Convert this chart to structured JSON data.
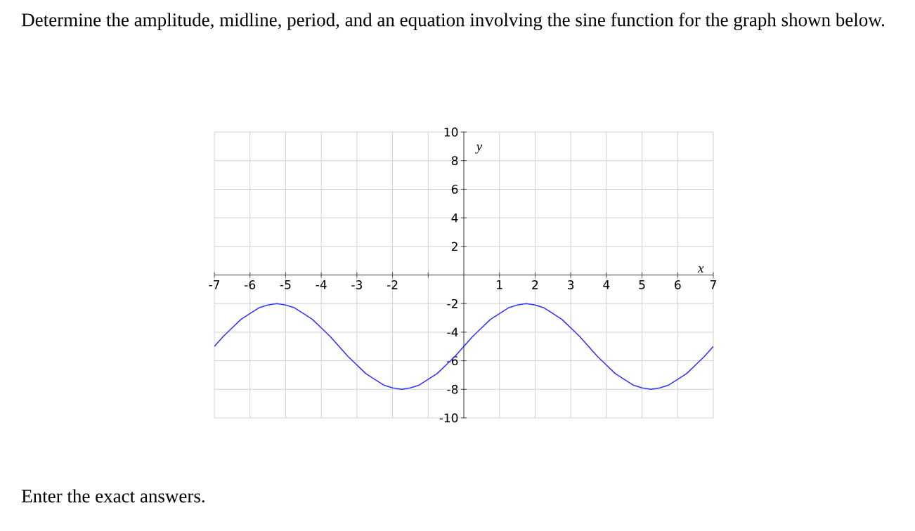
{
  "chart_data": {
    "type": "line",
    "title": "Determine the amplitude, midline, period, and an equation involving the sine function for the graph shown below.",
    "annotations": [
      "Enter the exact answers."
    ],
    "xlabel": "x",
    "ylabel": "y",
    "xlim": [
      -7,
      7
    ],
    "ylim": [
      -10,
      10
    ],
    "xticks": [
      -7,
      -6,
      -5,
      -4,
      -3,
      -2,
      {
        "value": -1,
        "label": null
      },
      {
        "value": 0,
        "label": null
      },
      1,
      2,
      3,
      4,
      5,
      6,
      7
    ],
    "yticks": [
      -10,
      -8,
      -6,
      -4,
      -2,
      {
        "value": 0,
        "label": null
      },
      2,
      4,
      6,
      8,
      10
    ],
    "grid": true,
    "marker": "none",
    "line_style": "solid",
    "series": [
      {
        "color": "#3333ff",
        "x": [
          -7,
          -6.75,
          -6.5,
          -6.25,
          -6,
          -5.75,
          -5.5,
          -5.25,
          -5,
          -4.75,
          -4.5,
          -4.25,
          -4,
          -3.75,
          -3.5,
          -3.25,
          -3,
          -2.75,
          -2.5,
          -2.25,
          -2,
          -1.75,
          -1.5,
          -1.25,
          -1,
          -0.75,
          -0.5,
          -0.25,
          0,
          0.25,
          0.5,
          0.75,
          1,
          1.25,
          1.5,
          1.75,
          2,
          2.25,
          2.5,
          2.75,
          3,
          3.25,
          3.5,
          3.75,
          4,
          4.25,
          4.5,
          4.75,
          5,
          5.25,
          5.5,
          5.75,
          6,
          6.25,
          6.5,
          6.75,
          7
        ],
        "values": [
          -5,
          -4.3,
          -3.7,
          -3.1,
          -2.7,
          -2.3,
          -2.1,
          -2,
          -2.1,
          -2.3,
          -2.7,
          -3.1,
          -3.7,
          -4.3,
          -5,
          -5.7,
          -6.3,
          -6.9,
          -7.3,
          -7.7,
          -7.9,
          -8,
          -7.9,
          -7.7,
          -7.3,
          -6.9,
          -6.3,
          -5.7,
          -5,
          -4.3,
          -3.7,
          -3.1,
          -2.7,
          -2.3,
          -2.1,
          -2,
          -2.1,
          -2.3,
          -2.7,
          -3.1,
          -3.7,
          -4.3,
          -5,
          -5.7,
          -6.3,
          -6.9,
          -7.3,
          -7.7,
          -7.9,
          -8,
          -7.9,
          -7.7,
          -7.3,
          -6.9,
          -6.3,
          -5.7,
          -5
        ]
      }
    ]
  }
}
